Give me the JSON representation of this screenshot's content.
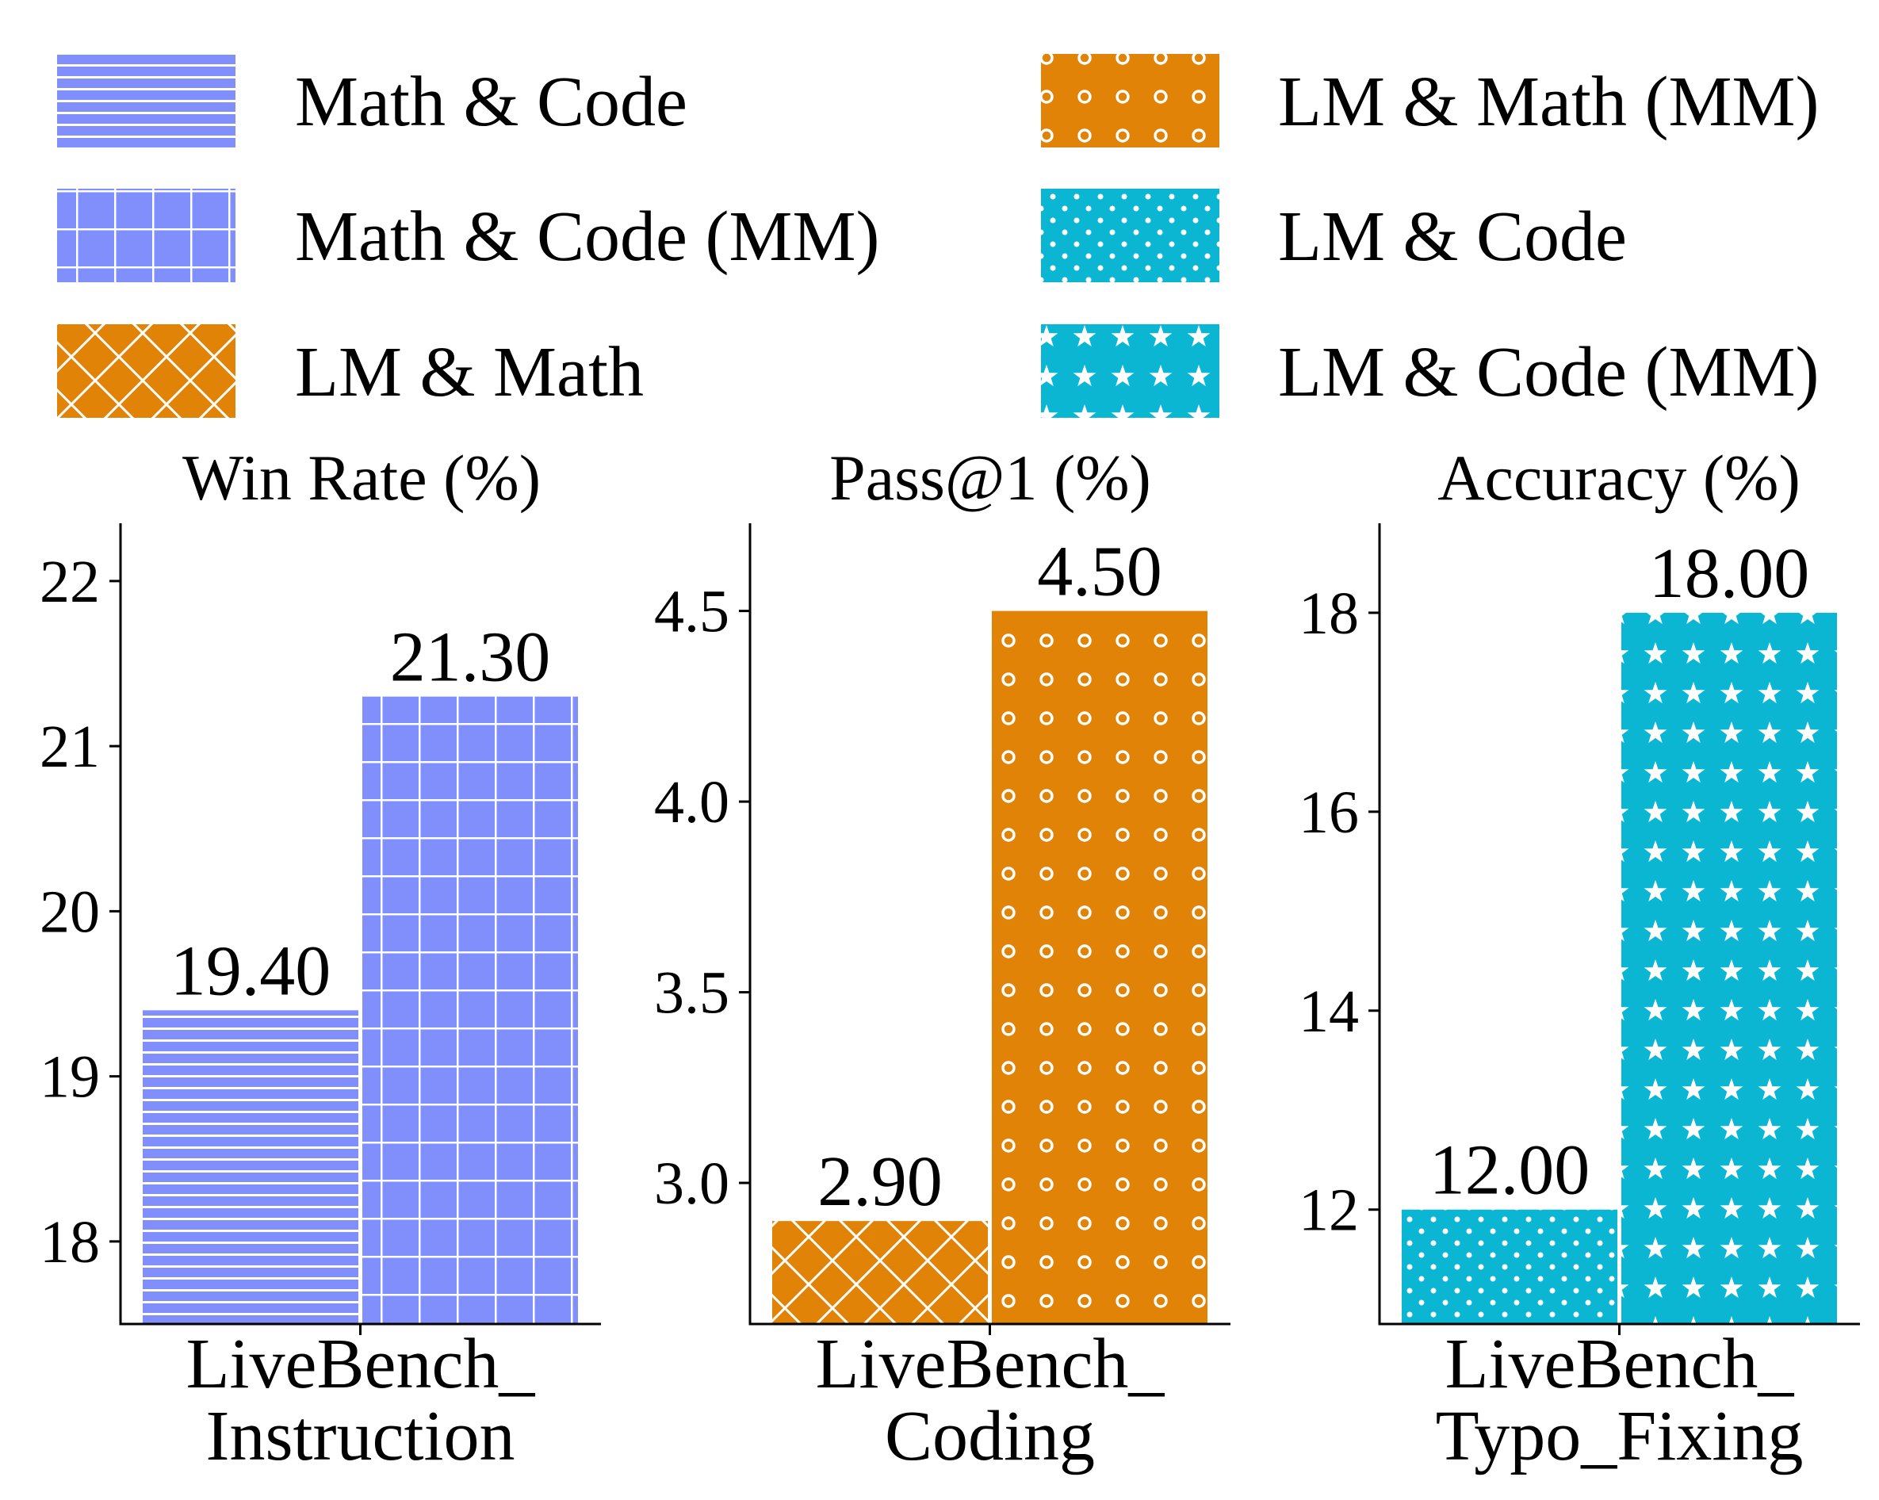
{
  "legend": {
    "items": [
      {
        "label": "Math & Code",
        "color": "#818ffd",
        "pattern": "horizontal-lines"
      },
      {
        "label": "LM & Math (MM)",
        "color": "#e08307",
        "pattern": "small-circles"
      },
      {
        "label": "Math & Code (MM)",
        "color": "#818ffd",
        "pattern": "grid"
      },
      {
        "label": "LM & Code",
        "color": "#0bb6d3",
        "pattern": "dots"
      },
      {
        "label": "LM & Math",
        "color": "#e08307",
        "pattern": "crosshatch-diagonal"
      },
      {
        "label": "LM & Code (MM)",
        "color": "#0bb6d3",
        "pattern": "stars"
      }
    ]
  },
  "chart_data": [
    {
      "type": "bar",
      "title": "Win Rate (%)",
      "categories": [
        "LiveBench_\nInstruction"
      ],
      "category_lines": [
        "LiveBench_",
        "Instruction"
      ],
      "series": [
        {
          "name": "Math & Code",
          "values": [
            19.4
          ],
          "label": "19.40",
          "color": "#818ffd",
          "pattern": "horizontal-lines"
        },
        {
          "name": "Math & Code (MM)",
          "values": [
            21.3
          ],
          "label": "21.30",
          "color": "#818ffd",
          "pattern": "grid"
        }
      ],
      "ylim": [
        17.5,
        22.35
      ],
      "yticks": [
        18,
        19,
        20,
        21,
        22
      ],
      "ytick_labels": [
        "18",
        "19",
        "20",
        "21",
        "22"
      ],
      "grid": false
    },
    {
      "type": "bar",
      "title": "Pass@1 (%)",
      "categories": [
        "LiveBench_\nCoding"
      ],
      "category_lines": [
        "LiveBench_",
        "Coding"
      ],
      "series": [
        {
          "name": "LM & Math",
          "values": [
            2.9
          ],
          "label": "2.90",
          "color": "#e08307",
          "pattern": "crosshatch-diagonal"
        },
        {
          "name": "LM & Math (MM)",
          "values": [
            4.5
          ],
          "label": "4.50",
          "color": "#e08307",
          "pattern": "small-circles"
        }
      ],
      "ylim": [
        2.63,
        4.73
      ],
      "yticks": [
        3.0,
        3.5,
        4.0,
        4.5
      ],
      "ytick_labels": [
        "3.0",
        "3.5",
        "4.0",
        "4.5"
      ],
      "grid": false
    },
    {
      "type": "bar",
      "title": "Accuracy (%)",
      "categories": [
        "LiveBench_\nTypo_Fixing"
      ],
      "category_lines": [
        "LiveBench_",
        "Typo_Fixing"
      ],
      "series": [
        {
          "name": "LM & Code",
          "values": [
            12.0
          ],
          "label": "12.00",
          "color": "#0bb6d3",
          "pattern": "dots"
        },
        {
          "name": "LM & Code (MM)",
          "values": [
            18.0
          ],
          "label": "18.00",
          "color": "#0bb6d3",
          "pattern": "stars"
        }
      ],
      "ylim": [
        10.85,
        18.9
      ],
      "yticks": [
        12,
        14,
        16,
        18
      ],
      "ytick_labels": [
        "12",
        "14",
        "16",
        "18"
      ],
      "grid": false
    }
  ]
}
